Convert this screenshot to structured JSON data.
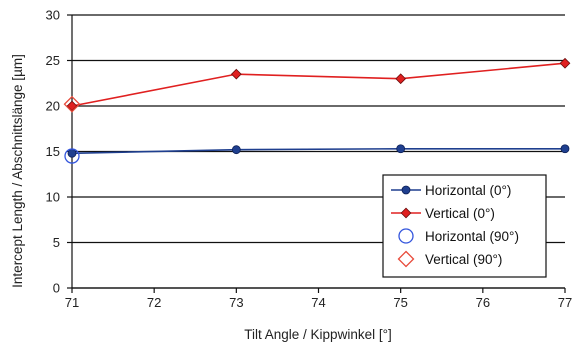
{
  "chart_data": {
    "type": "line",
    "xlabel": "Tilt Angle / Kippwinkel [°]",
    "ylabel": "Intercept Length / Abschnittslänge [µm]",
    "xlim": [
      71,
      77
    ],
    "ylim": [
      0,
      30
    ],
    "x_ticks": [
      "71",
      "72",
      "73",
      "74",
      "75",
      "76",
      "77"
    ],
    "y_ticks": [
      "0",
      "5",
      "10",
      "15",
      "20",
      "25",
      "30"
    ],
    "grid": "horizontal",
    "legend_position": "bottom-right",
    "series": [
      {
        "name": "Horizontal (0°)",
        "x": [
          71,
          73,
          75,
          77
        ],
        "y": [
          14.8,
          15.2,
          15.3,
          15.3
        ],
        "color": "#1f3f8f",
        "marker": "circle-filled",
        "line": true
      },
      {
        "name": "Vertical (0°)",
        "x": [
          71,
          73,
          75,
          77
        ],
        "y": [
          20.0,
          23.5,
          23.0,
          24.7
        ],
        "color": "#e02020",
        "marker": "diamond-filled",
        "line": true
      },
      {
        "name": "Horizontal (90°)",
        "x": [
          71
        ],
        "y": [
          14.5
        ],
        "color": "#3355dd",
        "marker": "circle-open",
        "line": false
      },
      {
        "name": "Vertical (90°)",
        "x": [
          71
        ],
        "y": [
          20.2
        ],
        "color": "#e84a3a",
        "marker": "diamond-open",
        "line": false
      }
    ]
  }
}
